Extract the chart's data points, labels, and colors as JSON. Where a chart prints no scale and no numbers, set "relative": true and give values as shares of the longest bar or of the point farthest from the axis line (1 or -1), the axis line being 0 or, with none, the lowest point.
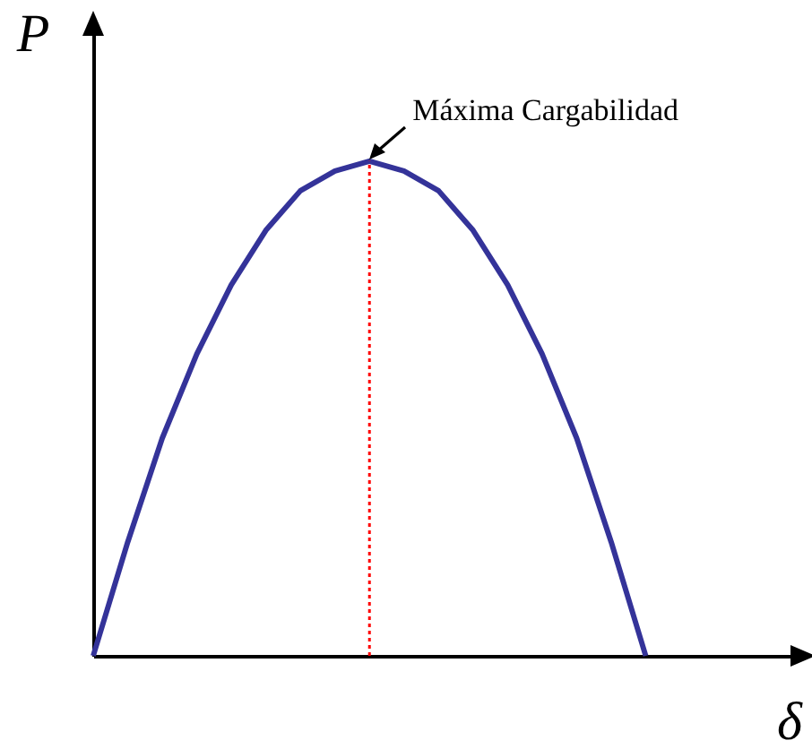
{
  "chart_data": {
    "type": "line",
    "relative": true,
    "xlabel": "δ",
    "ylabel": "P",
    "tick_labels": false,
    "grid": false,
    "categories": [
      null,
      null,
      null,
      null,
      null,
      null,
      null,
      null,
      null,
      null,
      null,
      null,
      null,
      null,
      null,
      null,
      null,
      null,
      null,
      null,
      null
    ],
    "series": [
      {
        "color": "#343399",
        "values": [
          0,
          0.23,
          0.44,
          0.61,
          0.75,
          0.86,
          0.94,
          0.98,
          1,
          0.98,
          0.94,
          0.86,
          0.75,
          0.61,
          0.44,
          0.23,
          0,
          null,
          null,
          null,
          null
        ]
      }
    ],
    "annotations": [
      "Máxima Cargabilidad"
    ]
  }
}
